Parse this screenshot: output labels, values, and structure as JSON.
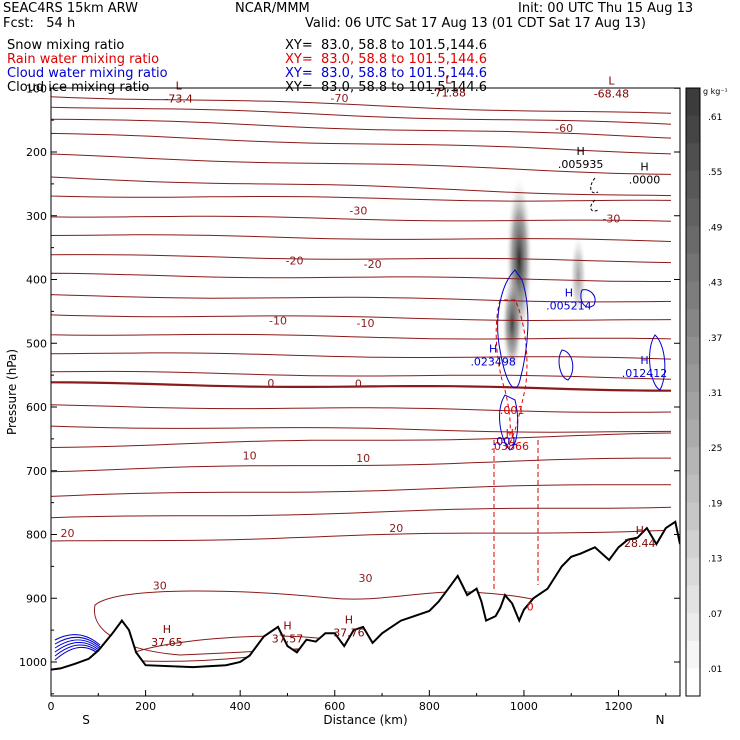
{
  "header": {
    "model": "SEAC4RS 15km ARW",
    "center": "NCAR/MMM",
    "init": "Init: 00 UTC Thu 15 Aug 13",
    "fcst": "Fcst:   54 h",
    "valid": "Valid: 06 UTC Sat 17 Aug 13 (01 CDT Sat 17 Aug 13)"
  },
  "fields": [
    {
      "name": "Snow mixing ratio",
      "xy": "XY=  83.0, 58.8 to 101.5,144.6",
      "color": "#000000"
    },
    {
      "name": "Rain water mixing ratio",
      "xy": "XY=  83.0, 58.8 to 101.5,144.6",
      "color": "#e00000"
    },
    {
      "name": "Cloud water mixing ratio",
      "xy": "XY=  83.0, 58.8 to 101.5,144.6",
      "color": "#0000d0"
    },
    {
      "name": "Cloud ice mixing ratio",
      "xy": "XY=  83.0, 58.8 to 101.5,144.6",
      "color": "#000000"
    }
  ],
  "chart_data": {
    "type": "contour",
    "xlabel": "Distance (km)",
    "ylabel": "Pressure (hPa)",
    "xlim": [
      0,
      1330
    ],
    "ylim": [
      1050,
      100
    ],
    "xticks": [
      0,
      200,
      400,
      600,
      800,
      1000,
      1200
    ],
    "yticks": [
      100,
      200,
      300,
      400,
      500,
      600,
      700,
      800,
      900,
      1000
    ],
    "xend_labels": {
      "left": "S",
      "right": "N"
    },
    "colorbar": {
      "unit": "g kg⁻¹",
      "labels": [
        ".01",
        ".07",
        ".13",
        ".19",
        ".25",
        ".31",
        ".37",
        ".43",
        ".49",
        ".55",
        ".61"
      ]
    },
    "temperature_contours": [
      {
        "value": -70,
        "label": "-70",
        "x": 610,
        "p": 115
      },
      {
        "value": -60,
        "label": "-60",
        "x": 1085,
        "p": 162
      },
      {
        "value": -30,
        "label": "-30",
        "x": 650,
        "p": 292
      },
      {
        "value": -30,
        "label": "-30",
        "x": 1185,
        "p": 304
      },
      {
        "value": -20,
        "label": "-20",
        "x": 515,
        "p": 370
      },
      {
        "value": -20,
        "label": "-20",
        "x": 680,
        "p": 376
      },
      {
        "value": -10,
        "label": "-10",
        "x": 480,
        "p": 464
      },
      {
        "value": -10,
        "label": "-10",
        "x": 665,
        "p": 468
      },
      {
        "value": 0,
        "label": "0",
        "x": 465,
        "p": 562
      },
      {
        "value": 0,
        "label": "0",
        "x": 650,
        "p": 563
      },
      {
        "value": 10,
        "label": "10",
        "x": 420,
        "p": 676
      },
      {
        "value": 10,
        "label": "10",
        "x": 660,
        "p": 680
      },
      {
        "value": 20,
        "label": "20",
        "x": 35,
        "p": 798
      },
      {
        "value": 20,
        "label": "20",
        "x": 730,
        "p": 790
      },
      {
        "value": 30,
        "label": "30",
        "x": 230,
        "p": 880
      },
      {
        "value": 30,
        "label": "30",
        "x": 665,
        "p": 868
      }
    ],
    "extrema": [
      {
        "kind": "L",
        "value": "-73.4",
        "x": 270,
        "p": 118,
        "color": "#800000"
      },
      {
        "kind": "L",
        "value": "-71.88",
        "x": 840,
        "p": 108,
        "color": "#800000"
      },
      {
        "kind": "L",
        "value": "-68.48",
        "x": 1185,
        "p": 110,
        "color": "#800000"
      },
      {
        "kind": "H",
        "value": ".005935",
        "x": 1120,
        "p": 220,
        "color": "#000000"
      },
      {
        "kind": "H",
        "value": ".0000",
        "x": 1255,
        "p": 245,
        "color": "#000000"
      },
      {
        "kind": "H",
        "value": ".005214",
        "x": 1095,
        "p": 442,
        "color": "#0000d0"
      },
      {
        "kind": "H",
        "value": ".023498",
        "x": 935,
        "p": 530,
        "color": "#0000d0"
      },
      {
        "kind": "H",
        "value": ".012412",
        "x": 1255,
        "p": 548,
        "color": "#0000d0"
      },
      {
        "kind": "H",
        "value": ".03866",
        "x": 970,
        "p": 663,
        "color": "#e00000"
      },
      {
        "kind": "H",
        "value": "28.44",
        "x": 1245,
        "p": 815,
        "color": "#800000"
      },
      {
        "kind": "H",
        "value": "37.65",
        "x": 245,
        "p": 970,
        "color": "#800000"
      },
      {
        "kind": "H",
        "value": "37.57",
        "x": 500,
        "p": 965,
        "color": "#800000"
      },
      {
        "kind": "H",
        "value": "37.76",
        "x": 630,
        "p": 955,
        "color": "#800000"
      }
    ],
    "contour_labels": [
      {
        "value": ".001",
        "x": 975,
        "p": 605,
        "color": "#e00000"
      },
      {
        "value": ".001",
        "x": 960,
        "p": 653,
        "color": "#0000d0"
      },
      {
        "value": "0",
        "x": 1013,
        "p": 913,
        "color": "#e00000"
      }
    ],
    "terrain": {
      "x": [
        0,
        20,
        50,
        80,
        100,
        130,
        150,
        165,
        180,
        200,
        300,
        370,
        400,
        420,
        450,
        480,
        500,
        520,
        540,
        560,
        580,
        600,
        620,
        640,
        660,
        680,
        700,
        720,
        740,
        760,
        780,
        800,
        820,
        840,
        860,
        870,
        880,
        900,
        910,
        920,
        940,
        950,
        960,
        975,
        990,
        1000,
        1020,
        1050,
        1080,
        1100,
        1120,
        1150,
        1180,
        1200,
        1220,
        1240,
        1260,
        1280,
        1300,
        1320,
        1330
      ],
      "p": [
        1012,
        1010,
        1003,
        995,
        982,
        955,
        935,
        950,
        985,
        1005,
        1008,
        1005,
        1000,
        990,
        960,
        945,
        975,
        985,
        965,
        968,
        955,
        955,
        975,
        950,
        945,
        970,
        955,
        945,
        935,
        930,
        925,
        920,
        905,
        885,
        865,
        880,
        895,
        885,
        905,
        935,
        928,
        915,
        895,
        908,
        935,
        918,
        900,
        885,
        850,
        835,
        830,
        820,
        840,
        820,
        808,
        805,
        790,
        815,
        790,
        780,
        815
      ]
    },
    "snow_shading": [
      {
        "x": 990,
        "p_top": 240,
        "p_bottom": 500,
        "max": 0.61
      },
      {
        "x": 1115,
        "p_top": 330,
        "p_bottom": 460,
        "max": 0.19
      }
    ]
  }
}
